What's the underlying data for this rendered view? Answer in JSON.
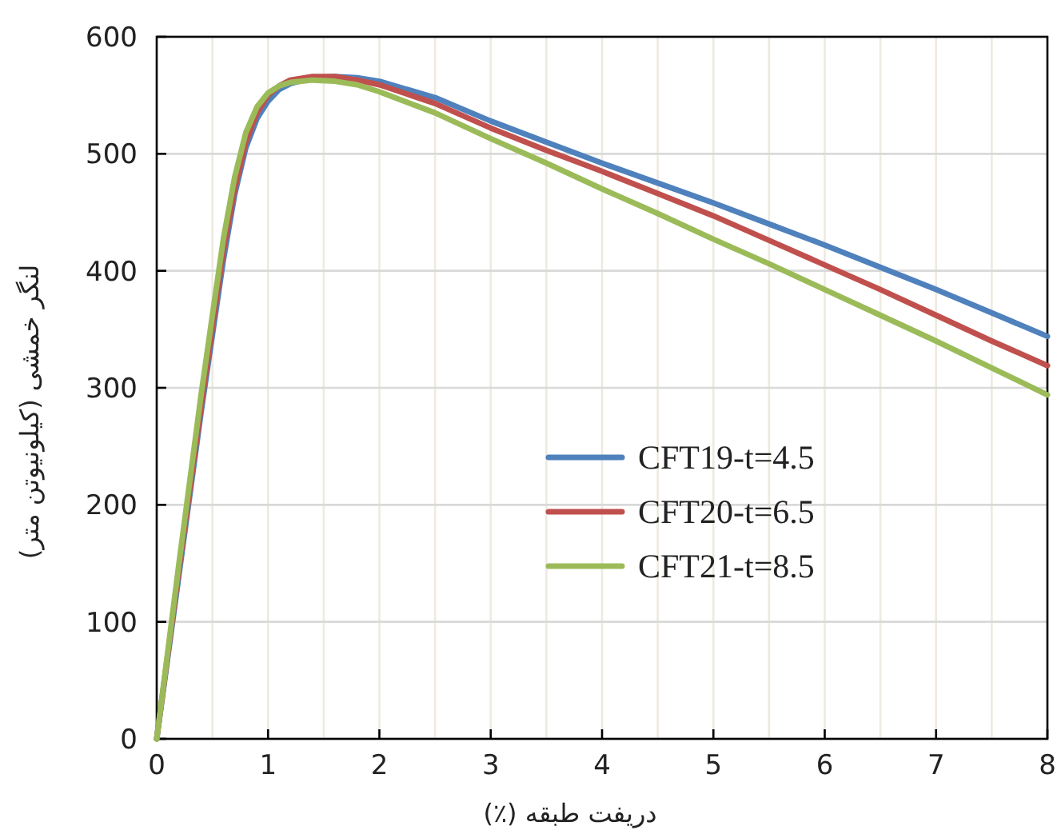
{
  "chart_data": {
    "type": "line",
    "xlabel": "دریفت طبقه (٪)",
    "ylabel": "لنگر خمشی (کیلونیوتن متر)",
    "x": [
      0,
      0.2,
      0.4,
      0.5,
      0.6,
      0.7,
      0.8,
      0.9,
      1.0,
      1.1,
      1.2,
      1.4,
      1.6,
      1.8,
      2,
      2.5,
      3,
      3.5,
      4,
      4.5,
      5,
      5.5,
      6,
      6.5,
      7,
      7.5,
      8
    ],
    "series": [
      {
        "name": "CFT19-t=4.5",
        "color": "#4f81bd",
        "values": [
          0,
          140,
          280,
          345,
          410,
          465,
          505,
          530,
          545,
          555,
          560,
          565,
          566,
          565,
          562,
          548,
          528,
          510,
          492,
          475,
          458,
          440,
          422,
          403,
          384,
          364,
          344
        ]
      },
      {
        "name": "CFT20-t=6.5",
        "color": "#c0504d",
        "values": [
          0,
          145,
          285,
          352,
          418,
          470,
          510,
          535,
          550,
          558,
          563,
          566,
          566,
          563,
          559,
          543,
          522,
          503,
          485,
          466,
          447,
          426,
          405,
          384,
          362,
          340,
          319
        ]
      },
      {
        "name": "CFT21-t=8.5",
        "color": "#9bbb59",
        "values": [
          0,
          150,
          295,
          362,
          428,
          480,
          518,
          540,
          552,
          558,
          561,
          563,
          562,
          559,
          553,
          535,
          513,
          492,
          470,
          449,
          427,
          406,
          384,
          362,
          340,
          317,
          294
        ]
      }
    ],
    "xlim": [
      0,
      8
    ],
    "ylim": [
      0,
      600
    ],
    "xticks": [
      0,
      {
        "value": 0.5,
        "label": null
      },
      1,
      {
        "value": 1.5,
        "label": null
      },
      2,
      {
        "value": 2.5,
        "label": null
      },
      3,
      {
        "value": 3.5,
        "label": null
      },
      4,
      {
        "value": 4.5,
        "label": null
      },
      5,
      {
        "value": 5.5,
        "label": null
      },
      6,
      {
        "value": 6.5,
        "label": null
      },
      7,
      {
        "value": 7.5,
        "label": null
      },
      8
    ],
    "yticks": [
      0,
      100,
      200,
      300,
      400,
      500,
      600
    ],
    "grid": true,
    "legend": "right",
    "marker": "none",
    "line_style": "solid"
  }
}
